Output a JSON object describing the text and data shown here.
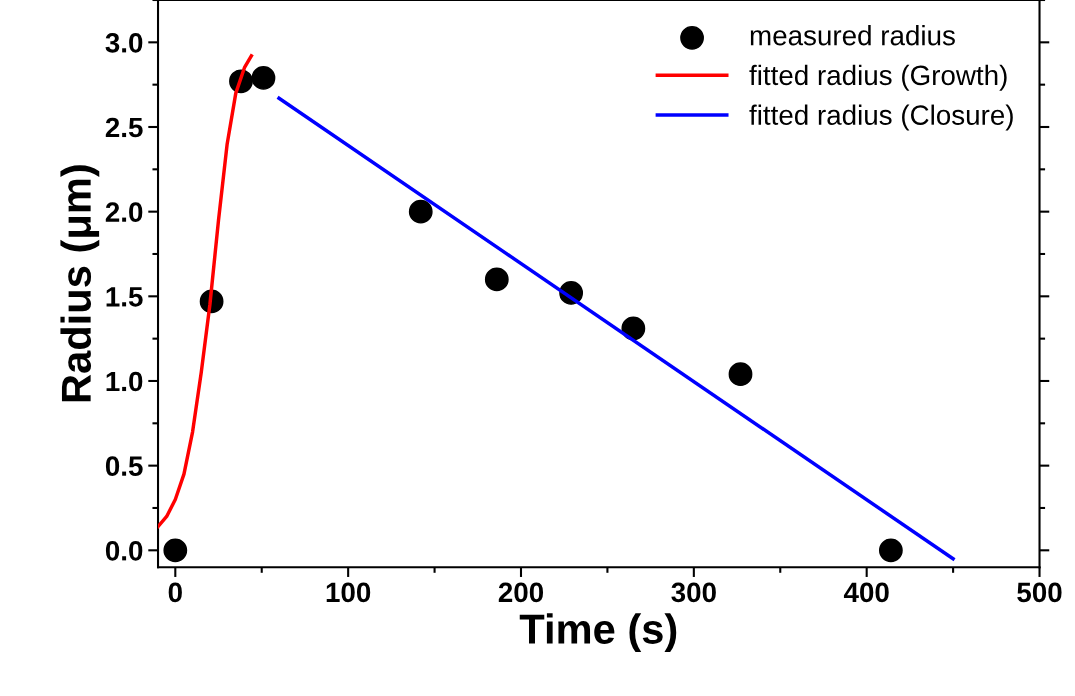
{
  "chart_data": {
    "type": "scatter",
    "xlabel": "Time (s)",
    "ylabel": "Radius (μm)",
    "xlim": [
      -10,
      500
    ],
    "ylim": [
      -0.1,
      3.25
    ],
    "xticks": [
      0,
      100,
      200,
      300,
      400,
      500
    ],
    "yticks": [
      {
        "value": 0,
        "label": "0.0"
      },
      0.5,
      {
        "value": 1,
        "label": "1.0"
      },
      1.5,
      {
        "value": 2,
        "label": "2.0"
      },
      2.5,
      {
        "value": 3,
        "label": "3.0"
      }
    ],
    "grid": false,
    "legend": "top right",
    "series": [
      {
        "name": "measured radius",
        "color": "#000000",
        "marker": "circle",
        "x": [
          0,
          21,
          38,
          51,
          142,
          186,
          229,
          265,
          327,
          414
        ],
        "values": [
          0.0,
          1.47,
          2.77,
          2.79,
          2.0,
          1.6,
          1.52,
          1.31,
          1.04,
          0.0
        ]
      },
      {
        "name": "fitted radius (Growth)",
        "type": "line",
        "color": "#ff0000",
        "line_style": "solid",
        "x": [
          -10,
          -5,
          0,
          5,
          10,
          15,
          20,
          25,
          30,
          35,
          40,
          44
        ],
        "values": [
          0.14,
          0.2,
          0.3,
          0.45,
          0.7,
          1.05,
          1.45,
          1.95,
          2.4,
          2.7,
          2.85,
          2.92
        ]
      },
      {
        "name": "fitted radius (Closure)",
        "type": "line",
        "color": "#0000ff",
        "line_style": "solid",
        "x": [
          60,
          450
        ],
        "values": [
          2.67,
          -0.05
        ]
      }
    ]
  }
}
